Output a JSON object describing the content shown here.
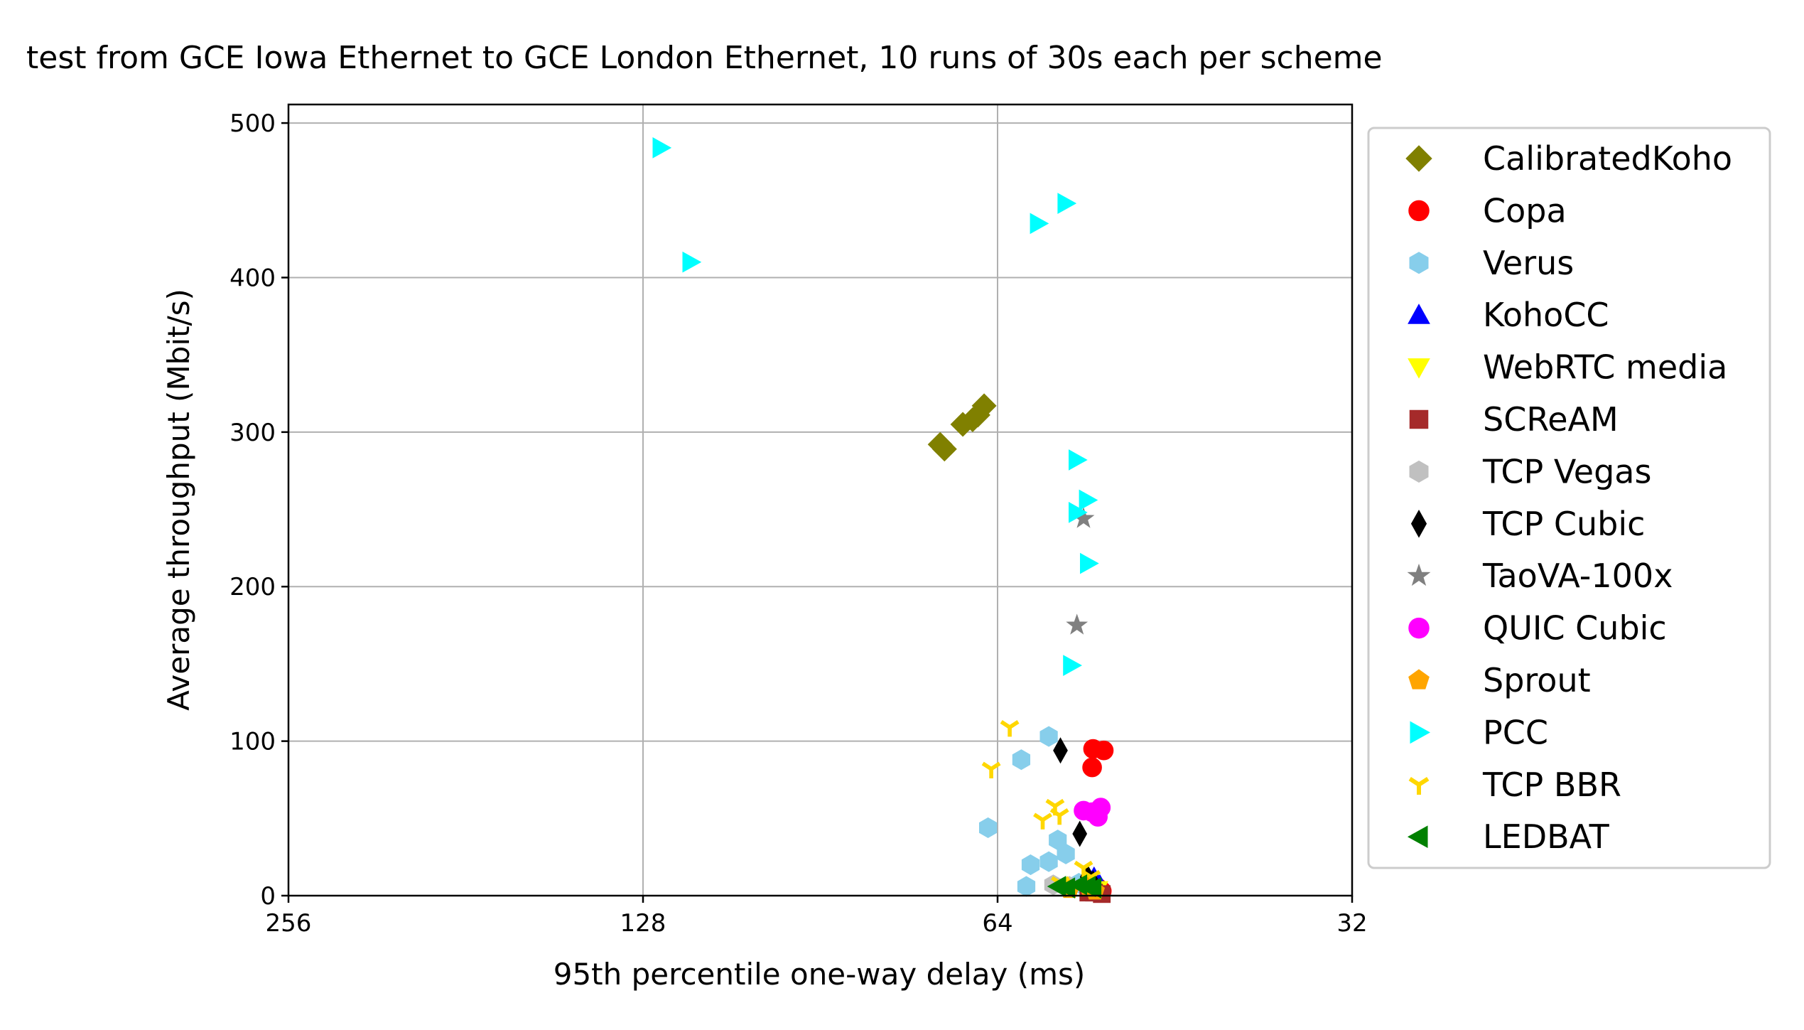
{
  "chart_data": {
    "type": "scatter",
    "title": "test from GCE Iowa Ethernet to GCE London Ethernet, 10 runs of 30s each per scheme",
    "xlabel": "95th percentile one-way delay (ms)",
    "ylabel": "Average throughput (Mbit/s)",
    "x_scale": "log2",
    "x_reversed": true,
    "xlim": [
      256,
      32
    ],
    "ylim": [
      0,
      512
    ],
    "xticks": [
      256,
      128,
      64,
      32
    ],
    "xtick_labels": [
      "256",
      "128",
      "64",
      "32"
    ],
    "yticks": [
      0,
      100,
      200,
      300,
      400,
      500
    ],
    "ytick_labels": [
      "0",
      "100",
      "200",
      "300",
      "400",
      "500"
    ],
    "grid": true,
    "legend_position": "outside-right",
    "series": [
      {
        "name": "CalibratedKoho",
        "marker": "diamond",
        "color": "#808000",
        "points": [
          [
            71.6,
            292
          ],
          [
            71.0,
            289
          ],
          [
            68.5,
            305
          ],
          [
            67.2,
            308
          ],
          [
            66.5,
            311
          ],
          [
            65.7,
            317
          ]
        ]
      },
      {
        "name": "Copa",
        "marker": "circle",
        "color": "#ff0000",
        "points": [
          [
            53.1,
            95
          ],
          [
            52.0,
            94
          ],
          [
            53.2,
            83
          ],
          [
            52.6,
            5
          ],
          [
            52.2,
            3
          ]
        ]
      },
      {
        "name": "Verus",
        "marker": "hexagon",
        "color": "#87ceeb",
        "points": [
          [
            65.2,
            44
          ],
          [
            61.1,
            88
          ],
          [
            57.9,
            103
          ],
          [
            60.0,
            20
          ],
          [
            57.9,
            22
          ],
          [
            56.9,
            36
          ],
          [
            56.0,
            27
          ],
          [
            60.5,
            6
          ],
          [
            54.6,
            8
          ]
        ]
      },
      {
        "name": "KohoCC",
        "marker": "triangle-up",
        "color": "#0000ff",
        "points": [
          [
            53.0,
            12
          ],
          [
            52.4,
            7
          ],
          [
            52.8,
            3
          ]
        ]
      },
      {
        "name": "WebRTC media",
        "marker": "triangle-down",
        "color": "#ffff00",
        "points": [
          [
            53.5,
            5
          ],
          [
            52.6,
            4
          ]
        ]
      },
      {
        "name": "SCReAM",
        "marker": "square",
        "color": "#a52a2a",
        "points": [
          [
            53.6,
            2
          ],
          [
            52.2,
            1
          ],
          [
            53.0,
            2
          ]
        ]
      },
      {
        "name": "TCP Vegas",
        "marker": "hexagon",
        "color": "#c0c0c0",
        "points": [
          [
            57.4,
            7
          ],
          [
            55.6,
            6
          ]
        ]
      },
      {
        "name": "TCP Cubic",
        "marker": "thin-diamond",
        "color": "#000000",
        "points": [
          [
            56.6,
            94
          ],
          [
            54.5,
            40
          ],
          [
            53.7,
            12
          ],
          [
            53.1,
            8
          ]
        ]
      },
      {
        "name": "TaoVA-100x",
        "marker": "star",
        "color": "#808080",
        "points": [
          [
            54.1,
            244
          ],
          [
            54.8,
            175
          ]
        ]
      },
      {
        "name": "QUIC Cubic",
        "marker": "circle",
        "color": "#ff00ff",
        "points": [
          [
            52.3,
            57
          ],
          [
            52.6,
            51
          ],
          [
            53.2,
            54
          ],
          [
            54.1,
            55
          ]
        ]
      },
      {
        "name": "Sprout",
        "marker": "pentagon",
        "color": "#ffa500",
        "points": [
          [
            55.6,
            4
          ],
          [
            53.6,
            6
          ],
          [
            52.9,
            3
          ]
        ]
      },
      {
        "name": "PCC",
        "marker": "triangle-right",
        "color": "#00ffff",
        "points": [
          [
            123.6,
            484
          ],
          [
            116.6,
            410
          ],
          [
            56.0,
            448
          ],
          [
            59.1,
            435
          ],
          [
            54.8,
            282
          ],
          [
            53.7,
            256
          ],
          [
            54.8,
            248
          ],
          [
            53.6,
            215
          ],
          [
            55.4,
            149
          ]
        ]
      },
      {
        "name": "TCP BBR",
        "marker": "tri-down",
        "color": "#ffd700",
        "points": [
          [
            62.5,
            109
          ],
          [
            64.8,
            82
          ],
          [
            58.6,
            49
          ],
          [
            57.2,
            58
          ],
          [
            56.7,
            52
          ],
          [
            54.1,
            18
          ],
          [
            53.3,
            12
          ],
          [
            56.6,
            8
          ]
        ]
      },
      {
        "name": "LEDBAT",
        "marker": "triangle-left",
        "color": "#008000",
        "points": [
          [
            56.9,
            6
          ],
          [
            55.9,
            5
          ],
          [
            54.6,
            7
          ],
          [
            53.7,
            6
          ],
          [
            53.1,
            5
          ]
        ]
      }
    ]
  }
}
